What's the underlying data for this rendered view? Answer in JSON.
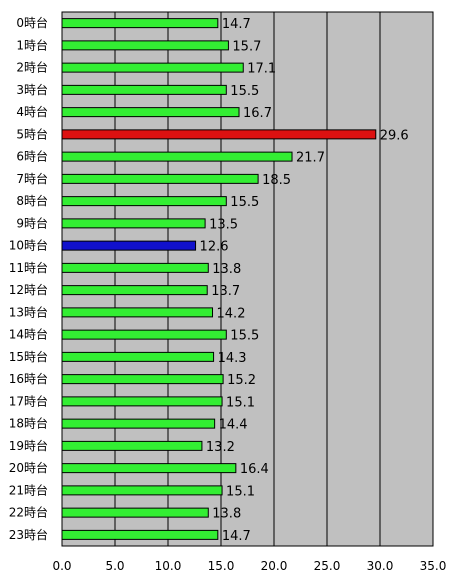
{
  "chart_data": {
    "type": "bar",
    "orientation": "horizontal",
    "categories": [
      "0時台",
      "1時台",
      "2時台",
      "3時台",
      "4時台",
      "5時台",
      "6時台",
      "7時台",
      "8時台",
      "9時台",
      "10時台",
      "11時台",
      "12時台",
      "13時台",
      "14時台",
      "15時台",
      "16時台",
      "17時台",
      "18時台",
      "19時台",
      "20時台",
      "21時台",
      "22時台",
      "23時台"
    ],
    "values": [
      14.7,
      15.7,
      17.1,
      15.5,
      16.7,
      29.6,
      21.7,
      18.5,
      15.5,
      13.5,
      12.6,
      13.8,
      13.7,
      14.2,
      15.5,
      14.3,
      15.2,
      15.1,
      14.4,
      13.2,
      16.4,
      15.1,
      13.8,
      14.7
    ],
    "value_labels": [
      "14.7",
      "15.7",
      "17.1",
      "15.5",
      "16.7",
      "29.6",
      "21.7",
      "18.5",
      "15.5",
      "13.5",
      "12.6",
      "13.8",
      "13.7",
      "14.2",
      "15.5",
      "14.3",
      "15.2",
      "15.1",
      "14.4",
      "13.2",
      "16.4",
      "15.1",
      "13.8",
      "14.7"
    ],
    "xlim": [
      0,
      35
    ],
    "xticks": [
      "0.0",
      "5.0",
      "10.0",
      "15.0",
      "20.0",
      "25.0",
      "30.0",
      "35.0"
    ],
    "grid": true,
    "legend": "none",
    "colors": {
      "default_bar": "#33ee33",
      "max_bar": "#dd1111",
      "min_bar": "#1111cc",
      "plot_background": "#c0c0c0",
      "gridline": "#000000"
    },
    "highlight": {
      "max_index": 5,
      "min_index": 10
    }
  }
}
